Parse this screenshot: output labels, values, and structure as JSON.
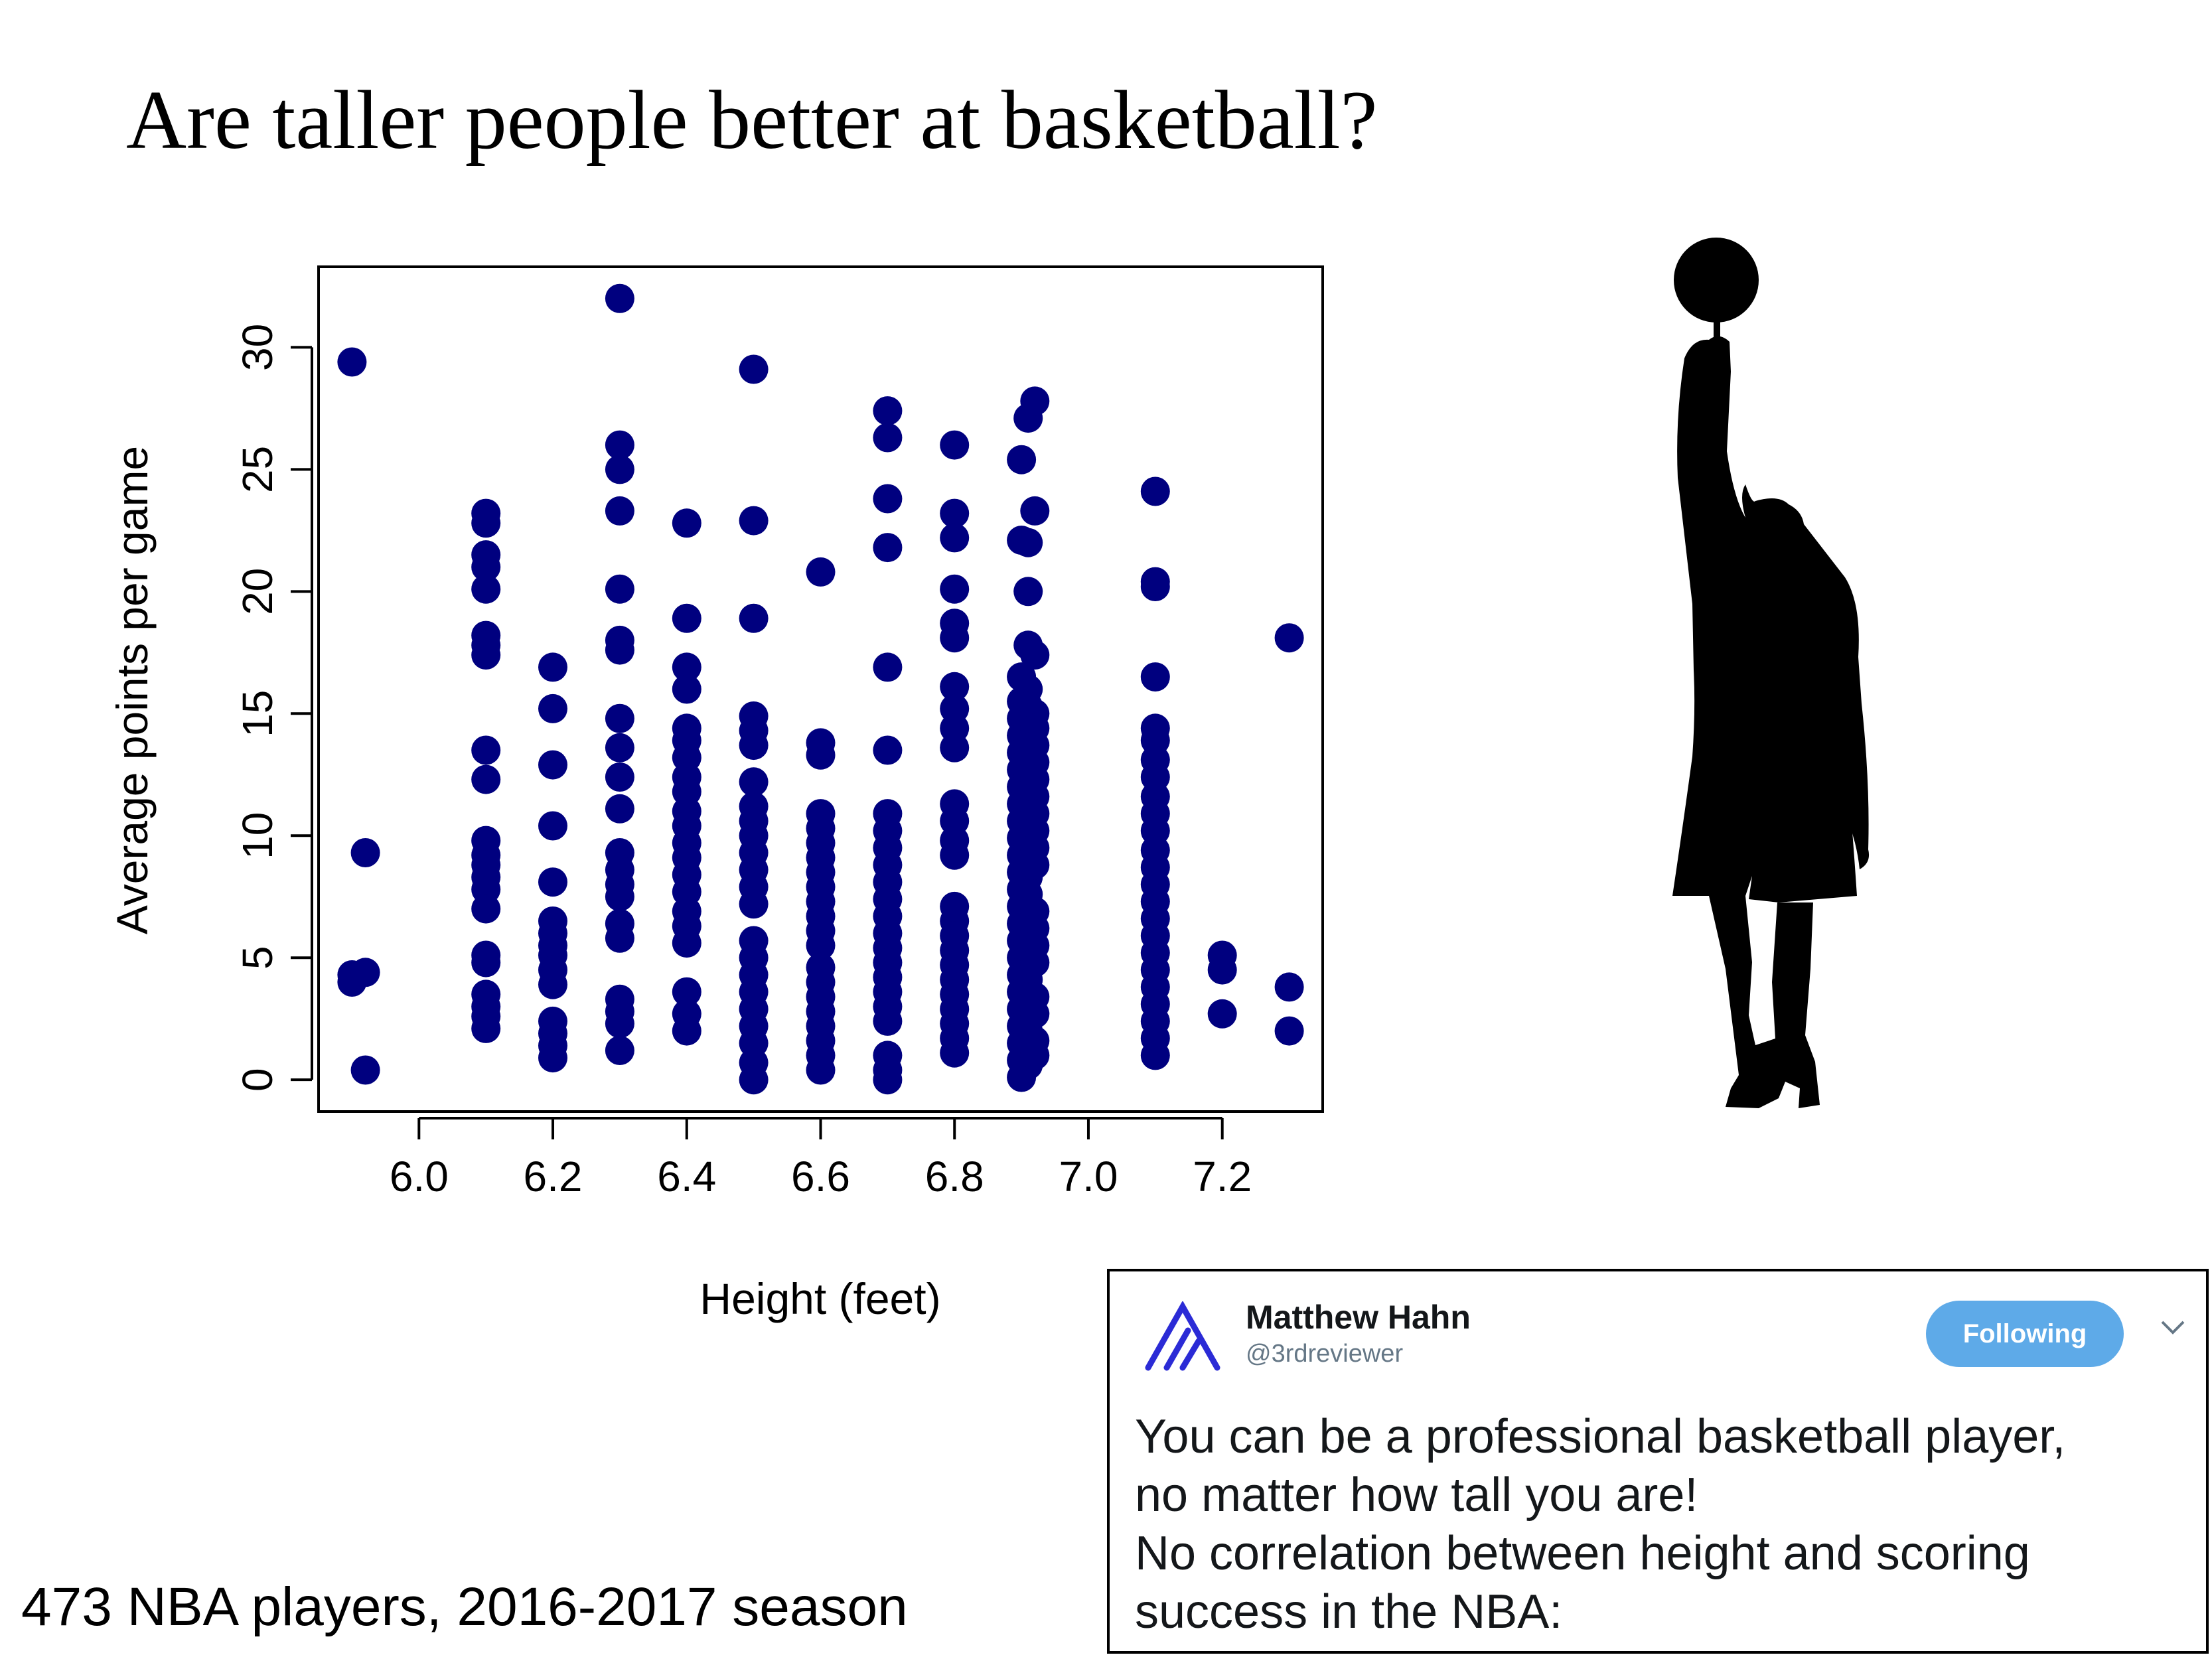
{
  "title": "Are taller people better at basketball?",
  "footnote": "473 NBA players, 2016-2017 season",
  "chart_data": {
    "type": "scatter",
    "xlabel": "Height (feet)",
    "ylabel": "Average points per game",
    "xlim": [
      5.85,
      7.35
    ],
    "ylim": [
      -1.3,
      33.3
    ],
    "xticks": [
      "6.0",
      "6.2",
      "6.4",
      "6.6",
      "6.8",
      "7.0",
      "7.2"
    ],
    "yticks": [
      "0",
      "5",
      "10",
      "15",
      "20",
      "25",
      "30"
    ],
    "point_color": "#00007f",
    "columns": [
      {
        "x": 5.9,
        "y": [
          29.4,
          4.0,
          4.3
        ]
      },
      {
        "x": 5.92,
        "y": [
          9.3,
          4.4,
          0.4
        ]
      },
      {
        "x": 6.1,
        "y": [
          23.2,
          22.8,
          21.5,
          21.0,
          20.1,
          18.2,
          17.8,
          17.4,
          13.5,
          12.3,
          9.8,
          9.2,
          8.8,
          8.3,
          7.8,
          7.0,
          5.1,
          4.8,
          3.5,
          3.0,
          2.6,
          2.1
        ]
      },
      {
        "x": 6.2,
        "y": [
          16.9,
          15.2,
          12.9,
          10.4,
          8.1,
          6.5,
          6.0,
          5.5,
          5.1,
          4.5,
          3.9,
          2.4,
          1.9,
          1.4,
          0.9
        ]
      },
      {
        "x": 6.3,
        "y": [
          32.0,
          26.0,
          25.0,
          23.3,
          20.1,
          18.0,
          17.6,
          14.8,
          13.6,
          12.4,
          11.1,
          9.3,
          8.6,
          8.0,
          7.5,
          6.4,
          5.8,
          3.3,
          2.8,
          2.3,
          1.2
        ]
      },
      {
        "x": 6.4,
        "y": [
          22.8,
          18.9,
          16.9,
          16.0,
          14.4,
          13.9,
          13.2,
          12.4,
          11.8,
          11.0,
          10.4,
          9.7,
          9.1,
          8.4,
          7.7,
          6.9,
          6.3,
          5.6,
          3.6,
          2.7,
          2.0
        ]
      },
      {
        "x": 6.5,
        "y": [
          29.1,
          22.9,
          18.9,
          14.9,
          14.3,
          13.7,
          12.2,
          11.2,
          10.6,
          10.0,
          9.3,
          8.6,
          7.9,
          7.2,
          5.7,
          5.0,
          4.3,
          3.6,
          2.9,
          2.2,
          1.5,
          0.7,
          0.0
        ]
      },
      {
        "x": 6.6,
        "y": [
          20.8,
          13.8,
          13.3,
          10.9,
          10.3,
          9.7,
          9.1,
          8.5,
          7.9,
          7.3,
          6.7,
          6.1,
          5.5,
          4.6,
          4.0,
          3.4,
          2.8,
          2.2,
          1.6,
          1.0,
          0.4
        ]
      },
      {
        "x": 6.7,
        "y": [
          27.4,
          26.3,
          23.8,
          21.8,
          16.9,
          13.5,
          10.9,
          10.2,
          9.5,
          8.8,
          8.1,
          7.4,
          6.7,
          6.0,
          5.4,
          4.8,
          4.2,
          3.6,
          3.0,
          2.4,
          1.0,
          0.4,
          0.0
        ]
      },
      {
        "x": 6.8,
        "y": [
          26.0,
          23.2,
          22.2,
          20.1,
          18.7,
          18.1,
          16.1,
          15.2,
          14.4,
          13.6,
          11.3,
          10.6,
          9.8,
          9.2,
          7.1,
          6.5,
          5.9,
          5.3,
          4.7,
          4.1,
          3.5,
          2.9,
          2.3,
          1.7,
          1.1
        ]
      },
      {
        "x": 6.9,
        "y": [
          25.4,
          22.1,
          16.5,
          15.5,
          14.8,
          14.1,
          13.4,
          12.7,
          12.0,
          11.3,
          10.6,
          9.9,
          9.2,
          8.5,
          7.8,
          7.1,
          6.4,
          5.7,
          5.0,
          4.3,
          3.6,
          2.9,
          2.2,
          1.5,
          0.8,
          0.1
        ]
      },
      {
        "x": 6.91,
        "y": [
          27.1,
          22.0,
          20.0,
          17.8,
          16.0,
          15.3,
          14.6,
          13.9,
          13.2,
          12.5,
          11.8,
          11.1,
          10.4,
          9.7,
          9.0,
          8.3,
          7.6,
          6.9,
          6.2,
          5.5,
          4.8,
          4.1,
          3.4,
          2.7,
          2.0,
          1.3,
          0.6
        ]
      },
      {
        "x": 6.92,
        "y": [
          27.8,
          23.3,
          17.4,
          15.0,
          14.4,
          13.7,
          13.0,
          12.3,
          11.6,
          10.9,
          10.2,
          9.5,
          8.8,
          6.9,
          6.2,
          5.5,
          4.8,
          3.4,
          2.7,
          1.6,
          1.0
        ]
      },
      {
        "x": 7.1,
        "y": [
          24.1,
          20.4,
          20.2,
          16.5,
          14.4,
          13.9,
          13.1,
          12.4,
          11.6,
          10.9,
          10.2,
          9.4,
          8.7,
          8.0,
          7.3,
          6.6,
          5.9,
          5.2,
          4.5,
          3.8,
          3.1,
          2.4,
          1.7,
          1.0
        ]
      },
      {
        "x": 7.2,
        "y": [
          5.1,
          4.5,
          2.7
        ]
      },
      {
        "x": 7.3,
        "y": [
          18.1,
          3.8,
          2.0
        ]
      }
    ]
  },
  "tweet": {
    "name": "Matthew Hahn",
    "handle": "@3rdreviewer",
    "follow_label": "Following",
    "lines": [
      "You can be a professional basketball player,",
      "no matter how tall you are!",
      "No correlation between height and scoring",
      "success in the NBA:"
    ],
    "logo_color": "#2b2bd6"
  }
}
